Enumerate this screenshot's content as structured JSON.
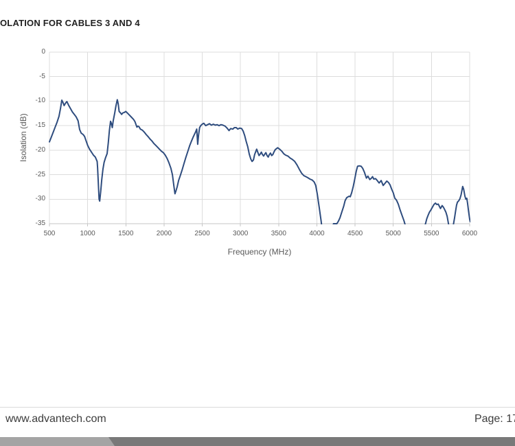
{
  "page": {
    "title": "OLATION FOR CABLES 3 AND 4",
    "footer": {
      "website": "www.advantech.com",
      "page_label": "Page: 17"
    }
  },
  "colors": {
    "line": "#2e4c7e",
    "gridline": "#dcdcdc",
    "axis_line": "#c6c6c6",
    "tick_text": "#595959",
    "heading_text": "#212121",
    "footer_text": "#3c3c3c",
    "footer_rule": "#d9d9d9",
    "bar_light": "#a4a4a4",
    "bar_dark": "#797979"
  },
  "chart_data": {
    "type": "line",
    "title": "OLATION FOR CABLES 3 AND 4",
    "xlabel": "Frequency (MHz)",
    "ylabel": "Isolation (dB)",
    "xlim": [
      500,
      6000
    ],
    "ylim": [
      -35,
      0
    ],
    "x_ticks": [
      500,
      1000,
      1500,
      2000,
      2500,
      3000,
      3500,
      4000,
      4500,
      5000,
      5500,
      6000
    ],
    "y_ticks": [
      0,
      -5,
      -10,
      -15,
      -20,
      -25,
      -30,
      -35
    ],
    "grid": true,
    "legend": false,
    "clipped_below_ymin_ranges_mhz": [
      [
        4070,
        4210
      ],
      [
        5165,
        5405
      ],
      [
        5725,
        5785
      ]
    ],
    "series": [
      {
        "points": [
          [
            500,
            -18.3
          ],
          [
            525,
            -17.3
          ],
          [
            550,
            -16.3
          ],
          [
            575,
            -15.3
          ],
          [
            600,
            -14.3
          ],
          [
            625,
            -13.1
          ],
          [
            645,
            -11.5
          ],
          [
            662,
            -9.8
          ],
          [
            678,
            -10.3
          ],
          [
            692,
            -10.9
          ],
          [
            710,
            -10.4
          ],
          [
            728,
            -10.1
          ],
          [
            750,
            -10.8
          ],
          [
            775,
            -11.5
          ],
          [
            800,
            -12.2
          ],
          [
            825,
            -12.7
          ],
          [
            850,
            -13.2
          ],
          [
            875,
            -14.0
          ],
          [
            895,
            -15.8
          ],
          [
            915,
            -16.5
          ],
          [
            940,
            -16.8
          ],
          [
            960,
            -17.2
          ],
          [
            980,
            -18.1
          ],
          [
            1000,
            -19.0
          ],
          [
            1025,
            -19.8
          ],
          [
            1050,
            -20.4
          ],
          [
            1075,
            -21.0
          ],
          [
            1100,
            -21.4
          ],
          [
            1125,
            -22.3
          ],
          [
            1130,
            -23.5
          ],
          [
            1150,
            -30.0
          ],
          [
            1158,
            -30.4
          ],
          [
            1170,
            -28.5
          ],
          [
            1185,
            -26.0
          ],
          [
            1200,
            -23.9
          ],
          [
            1215,
            -22.5
          ],
          [
            1235,
            -21.5
          ],
          [
            1255,
            -20.7
          ],
          [
            1270,
            -18.5
          ],
          [
            1285,
            -16.0
          ],
          [
            1300,
            -14.1
          ],
          [
            1310,
            -14.5
          ],
          [
            1322,
            -15.4
          ],
          [
            1335,
            -14.0
          ],
          [
            1355,
            -12.4
          ],
          [
            1370,
            -11.0
          ],
          [
            1388,
            -9.7
          ],
          [
            1400,
            -10.5
          ],
          [
            1412,
            -12.1
          ],
          [
            1430,
            -12.4
          ],
          [
            1445,
            -12.7
          ],
          [
            1460,
            -12.4
          ],
          [
            1480,
            -12.3
          ],
          [
            1500,
            -12.1
          ],
          [
            1525,
            -12.5
          ],
          [
            1550,
            -12.9
          ],
          [
            1575,
            -13.3
          ],
          [
            1600,
            -13.7
          ],
          [
            1620,
            -14.2
          ],
          [
            1645,
            -15.3
          ],
          [
            1658,
            -15.1
          ],
          [
            1672,
            -15.2
          ],
          [
            1690,
            -15.7
          ],
          [
            1715,
            -15.9
          ],
          [
            1740,
            -16.3
          ],
          [
            1765,
            -16.8
          ],
          [
            1790,
            -17.2
          ],
          [
            1815,
            -17.7
          ],
          [
            1840,
            -18.1
          ],
          [
            1865,
            -18.6
          ],
          [
            1890,
            -19.0
          ],
          [
            1915,
            -19.4
          ],
          [
            1940,
            -19.8
          ],
          [
            1965,
            -20.2
          ],
          [
            1990,
            -20.5
          ],
          [
            2015,
            -21.0
          ],
          [
            2040,
            -21.7
          ],
          [
            2065,
            -22.6
          ],
          [
            2090,
            -23.7
          ],
          [
            2110,
            -25.0
          ],
          [
            2130,
            -27.5
          ],
          [
            2143,
            -28.9
          ],
          [
            2158,
            -28.2
          ],
          [
            2172,
            -27.5
          ],
          [
            2190,
            -26.2
          ],
          [
            2210,
            -25.3
          ],
          [
            2235,
            -24.1
          ],
          [
            2260,
            -22.8
          ],
          [
            2285,
            -21.5
          ],
          [
            2310,
            -20.3
          ],
          [
            2335,
            -19.1
          ],
          [
            2360,
            -18.1
          ],
          [
            2385,
            -17.2
          ],
          [
            2410,
            -16.4
          ],
          [
            2428,
            -15.7
          ],
          [
            2440,
            -18.8
          ],
          [
            2452,
            -16.9
          ],
          [
            2465,
            -15.4
          ],
          [
            2480,
            -15.0
          ],
          [
            2500,
            -14.7
          ],
          [
            2520,
            -14.5
          ],
          [
            2545,
            -15.0
          ],
          [
            2570,
            -14.8
          ],
          [
            2595,
            -14.6
          ],
          [
            2620,
            -14.9
          ],
          [
            2645,
            -14.7
          ],
          [
            2670,
            -14.9
          ],
          [
            2695,
            -14.8
          ],
          [
            2720,
            -15.0
          ],
          [
            2745,
            -14.8
          ],
          [
            2770,
            -14.9
          ],
          [
            2800,
            -15.1
          ],
          [
            2825,
            -15.5
          ],
          [
            2850,
            -16.0
          ],
          [
            2872,
            -15.6
          ],
          [
            2900,
            -15.7
          ],
          [
            2920,
            -15.4
          ],
          [
            2945,
            -15.4
          ],
          [
            2965,
            -15.7
          ],
          [
            2990,
            -15.5
          ],
          [
            3015,
            -15.6
          ],
          [
            3035,
            -16.1
          ],
          [
            3055,
            -17.0
          ],
          [
            3075,
            -18.2
          ],
          [
            3095,
            -19.3
          ],
          [
            3115,
            -20.8
          ],
          [
            3135,
            -21.8
          ],
          [
            3152,
            -22.3
          ],
          [
            3170,
            -22.0
          ],
          [
            3185,
            -20.9
          ],
          [
            3212,
            -19.8
          ],
          [
            3228,
            -20.5
          ],
          [
            3243,
            -21.1
          ],
          [
            3258,
            -20.8
          ],
          [
            3273,
            -20.4
          ],
          [
            3288,
            -20.9
          ],
          [
            3303,
            -21.2
          ],
          [
            3318,
            -20.8
          ],
          [
            3333,
            -20.5
          ],
          [
            3348,
            -21.1
          ],
          [
            3363,
            -21.4
          ],
          [
            3378,
            -20.9
          ],
          [
            3393,
            -20.6
          ],
          [
            3408,
            -21.1
          ],
          [
            3423,
            -20.9
          ],
          [
            3438,
            -20.4
          ],
          [
            3455,
            -19.9
          ],
          [
            3487,
            -19.5
          ],
          [
            3512,
            -19.8
          ],
          [
            3540,
            -20.2
          ],
          [
            3565,
            -20.7
          ],
          [
            3590,
            -21.0
          ],
          [
            3620,
            -21.2
          ],
          [
            3650,
            -21.6
          ],
          [
            3680,
            -21.9
          ],
          [
            3710,
            -22.3
          ],
          [
            3740,
            -23.0
          ],
          [
            3770,
            -23.9
          ],
          [
            3800,
            -24.7
          ],
          [
            3830,
            -25.2
          ],
          [
            3855,
            -25.4
          ],
          [
            3880,
            -25.6
          ],
          [
            3910,
            -25.9
          ],
          [
            3940,
            -26.1
          ],
          [
            3965,
            -26.5
          ],
          [
            3985,
            -27.2
          ],
          [
            4005,
            -28.9
          ],
          [
            4030,
            -31.6
          ],
          [
            4055,
            -34.4
          ],
          [
            4070,
            -36.2
          ],
          [
            4150,
            -37.0
          ],
          [
            4205,
            -35.6
          ],
          [
            4218,
            -35.0
          ],
          [
            4262,
            -35.0
          ],
          [
            4282,
            -34.5
          ],
          [
            4302,
            -33.8
          ],
          [
            4327,
            -32.6
          ],
          [
            4352,
            -31.4
          ],
          [
            4370,
            -30.3
          ],
          [
            4390,
            -29.7
          ],
          [
            4410,
            -29.5
          ],
          [
            4422,
            -29.4
          ],
          [
            4437,
            -29.5
          ],
          [
            4455,
            -28.7
          ],
          [
            4475,
            -27.5
          ],
          [
            4495,
            -26.0
          ],
          [
            4515,
            -24.3
          ],
          [
            4532,
            -23.3
          ],
          [
            4555,
            -23.2
          ],
          [
            4580,
            -23.3
          ],
          [
            4600,
            -23.7
          ],
          [
            4622,
            -24.5
          ],
          [
            4648,
            -25.7
          ],
          [
            4668,
            -25.3
          ],
          [
            4692,
            -26.0
          ],
          [
            4715,
            -25.7
          ],
          [
            4728,
            -25.4
          ],
          [
            4745,
            -25.9
          ],
          [
            4768,
            -25.8
          ],
          [
            4790,
            -26.2
          ],
          [
            4815,
            -26.7
          ],
          [
            4842,
            -26.2
          ],
          [
            4868,
            -27.2
          ],
          [
            4890,
            -26.8
          ],
          [
            4915,
            -26.3
          ],
          [
            4938,
            -26.6
          ],
          [
            4958,
            -27.1
          ],
          [
            4980,
            -28.0
          ],
          [
            5000,
            -28.7
          ],
          [
            5020,
            -29.8
          ],
          [
            5042,
            -30.2
          ],
          [
            5065,
            -31.0
          ],
          [
            5090,
            -32.2
          ],
          [
            5115,
            -33.3
          ],
          [
            5140,
            -34.4
          ],
          [
            5162,
            -35.6
          ],
          [
            5250,
            -37.0
          ],
          [
            5360,
            -37.0
          ],
          [
            5408,
            -35.6
          ],
          [
            5422,
            -35.0
          ],
          [
            5438,
            -34.0
          ],
          [
            5455,
            -33.3
          ],
          [
            5472,
            -32.7
          ],
          [
            5492,
            -32.2
          ],
          [
            5510,
            -31.7
          ],
          [
            5532,
            -31.1
          ],
          [
            5552,
            -30.8
          ],
          [
            5570,
            -31.1
          ],
          [
            5588,
            -31.0
          ],
          [
            5605,
            -31.5
          ],
          [
            5618,
            -31.9
          ],
          [
            5640,
            -31.3
          ],
          [
            5655,
            -31.6
          ],
          [
            5672,
            -32.1
          ],
          [
            5690,
            -32.7
          ],
          [
            5705,
            -33.5
          ],
          [
            5722,
            -35.0
          ],
          [
            5738,
            -36.3
          ],
          [
            5772,
            -36.2
          ],
          [
            5788,
            -35.1
          ],
          [
            5802,
            -33.8
          ],
          [
            5815,
            -32.5
          ],
          [
            5828,
            -31.2
          ],
          [
            5840,
            -30.6
          ],
          [
            5858,
            -30.3
          ],
          [
            5872,
            -29.9
          ],
          [
            5888,
            -29.1
          ],
          [
            5908,
            -27.4
          ],
          [
            5922,
            -28.0
          ],
          [
            5938,
            -29.4
          ],
          [
            5950,
            -30.0
          ],
          [
            5962,
            -29.8
          ],
          [
            5972,
            -30.8
          ],
          [
            5985,
            -32.4
          ],
          [
            6000,
            -34.1
          ],
          [
            6008,
            -34.6
          ]
        ]
      }
    ]
  }
}
